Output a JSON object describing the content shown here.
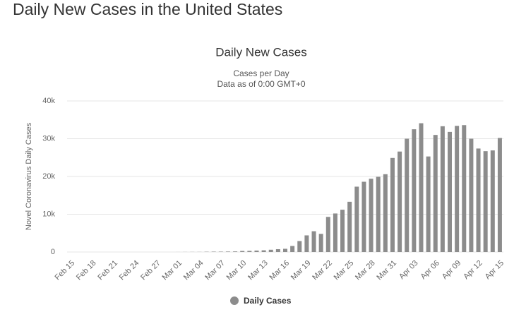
{
  "header": {
    "title": "Daily New Cases in the United States"
  },
  "chart_data": {
    "type": "bar",
    "title": "Daily New Cases",
    "subtitle": [
      "Cases per Day",
      "Data as of 0:00 GMT+0"
    ],
    "y_label": "Novel Coronavirus Daily Cases",
    "categories": [
      "Feb 15",
      null,
      null,
      "Feb 18",
      null,
      null,
      "Feb 21",
      null,
      null,
      "Feb 24",
      null,
      null,
      "Feb 27",
      null,
      null,
      "Mar 01",
      null,
      null,
      "Mar 04",
      null,
      null,
      "Mar 07",
      null,
      null,
      "Mar 10",
      null,
      null,
      "Mar 13",
      null,
      null,
      "Mar 16",
      null,
      null,
      "Mar 19",
      null,
      null,
      "Mar 22",
      null,
      null,
      "Mar 25",
      null,
      null,
      "Mar 28",
      null,
      null,
      "Mar 31",
      null,
      null,
      "Apr 03",
      null,
      null,
      "Apr 06",
      null,
      null,
      "Apr 09",
      null,
      null,
      "Apr 12",
      null,
      null,
      "Apr 15"
    ],
    "series": [
      {
        "name": "Daily Cases",
        "color": "#8c8c8c",
        "values": [
          0,
          0,
          0,
          0,
          0,
          0,
          0,
          0,
          0,
          0,
          0,
          0,
          0,
          0,
          0,
          10,
          20,
          25,
          30,
          70,
          100,
          100,
          120,
          150,
          280,
          300,
          380,
          450,
          600,
          750,
          850,
          1600,
          2900,
          4400,
          5500,
          4800,
          9300,
          10200,
          11200,
          13300,
          17300,
          18600,
          19400,
          19900,
          20600,
          24900,
          26600,
          30000,
          32500,
          34100,
          25300,
          31000,
          33300,
          31800,
          33400,
          33600,
          30000,
          27400,
          26700,
          26900,
          30200
        ]
      }
    ],
    "ylim": [
      0,
      40000
    ],
    "yticks": [
      0,
      {
        "value": 10000,
        "label": "10k"
      },
      {
        "value": 20000,
        "label": "20k"
      },
      {
        "value": 30000,
        "label": "30k"
      },
      {
        "value": 40000,
        "label": "40k"
      }
    ],
    "grid": true
  }
}
